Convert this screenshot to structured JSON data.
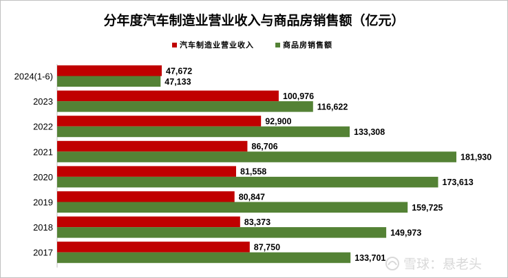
{
  "chart_data": {
    "type": "bar",
    "orientation": "horizontal",
    "title": "分年度汽车制造业营业收入与商品房销售额（亿元）",
    "categories": [
      "2024(1-6)",
      "2023",
      "2022",
      "2021",
      "2020",
      "2019",
      "2018",
      "2017"
    ],
    "series": [
      {
        "name": "汽车制造业营业收入",
        "color": "#c00000",
        "values": [
          47672,
          100976,
          92900,
          86706,
          81558,
          80847,
          83373,
          87750
        ],
        "labels": [
          "47,672",
          "100,976",
          "92,900",
          "86,706",
          "81,558",
          "80,847",
          "83,373",
          "87,750"
        ]
      },
      {
        "name": "商品房销售额",
        "color": "#548235",
        "values": [
          47133,
          116622,
          133308,
          181930,
          173613,
          159725,
          149973,
          133701
        ],
        "labels": [
          "47,133",
          "116,622",
          "133,308",
          "181,930",
          "173,613",
          "159,725",
          "149,973",
          "133,701"
        ]
      }
    ],
    "xlim": [
      0,
      210000
    ],
    "grid": false,
    "legend": "top"
  },
  "watermark": {
    "text": "雪球：悬老头"
  }
}
